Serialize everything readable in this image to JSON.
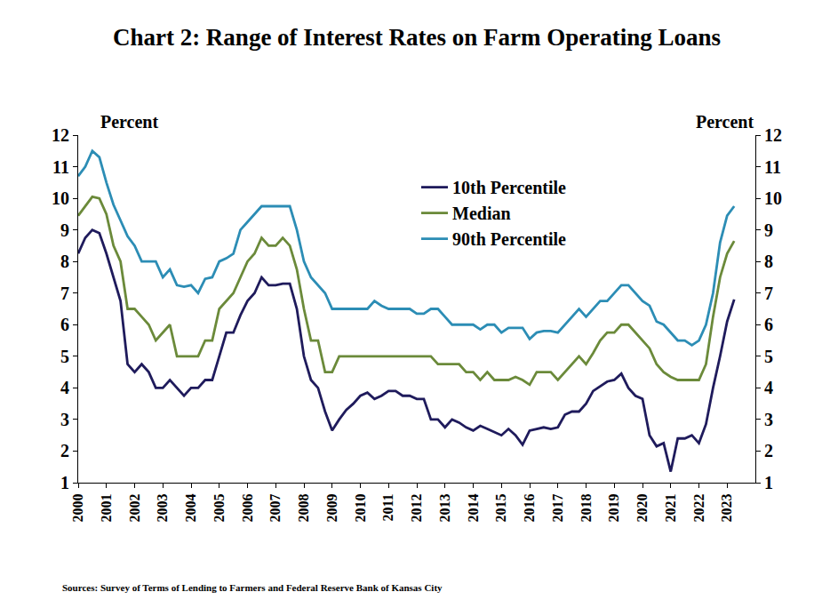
{
  "chart_data": {
    "type": "line",
    "title": "Chart 2: Range of Interest Rates on Farm Operating Loans",
    "ylabel": "Percent",
    "y2label": "Percent",
    "source": "Sources: Survey of Terms of Lending to Farmers and Federal Reserve Bank of Kansas City",
    "x": [
      2000,
      2000.25,
      2000.5,
      2000.75,
      2001,
      2001.25,
      2001.5,
      2001.75,
      2002,
      2002.25,
      2002.5,
      2002.75,
      2003,
      2003.25,
      2003.5,
      2003.75,
      2004,
      2004.25,
      2004.5,
      2004.75,
      2005,
      2005.25,
      2005.5,
      2005.75,
      2006,
      2006.25,
      2006.5,
      2006.75,
      2007,
      2007.25,
      2007.5,
      2007.75,
      2008,
      2008.25,
      2008.5,
      2008.75,
      2009,
      2009.25,
      2009.5,
      2009.75,
      2010,
      2010.25,
      2010.5,
      2010.75,
      2011,
      2011.25,
      2011.5,
      2011.75,
      2012,
      2012.25,
      2012.5,
      2012.75,
      2013,
      2013.25,
      2013.5,
      2013.75,
      2014,
      2014.25,
      2014.5,
      2014.75,
      2015,
      2015.25,
      2015.5,
      2015.75,
      2016,
      2016.25,
      2016.5,
      2016.75,
      2017,
      2017.25,
      2017.5,
      2017.75,
      2018,
      2018.25,
      2018.5,
      2018.75,
      2019,
      2019.25,
      2019.5,
      2019.75,
      2020,
      2020.25,
      2020.5,
      2020.75,
      2021,
      2021.25,
      2021.5,
      2021.75,
      2022,
      2022.25,
      2022.5,
      2022.75,
      2023,
      2023.25
    ],
    "series": [
      {
        "name": "10th Percentile",
        "color": "#1f1b5c",
        "values": [
          8.25,
          8.75,
          9.0,
          8.9,
          8.25,
          7.5,
          6.75,
          4.75,
          4.5,
          4.75,
          4.5,
          4.0,
          4.0,
          4.25,
          4.0,
          3.75,
          4.0,
          4.0,
          4.25,
          4.25,
          5.0,
          5.75,
          5.75,
          6.3,
          6.75,
          7.0,
          7.5,
          7.25,
          7.25,
          7.3,
          7.3,
          6.5,
          5.0,
          4.25,
          4.0,
          3.25,
          2.65,
          3.0,
          3.3,
          3.5,
          3.75,
          3.85,
          3.65,
          3.75,
          3.9,
          3.9,
          3.75,
          3.75,
          3.65,
          3.65,
          3.0,
          3.0,
          2.75,
          3.0,
          2.9,
          2.75,
          2.65,
          2.8,
          2.7,
          2.6,
          2.5,
          2.7,
          2.5,
          2.2,
          2.65,
          2.7,
          2.75,
          2.7,
          2.75,
          3.15,
          3.25,
          3.25,
          3.5,
          3.9,
          4.05,
          4.2,
          4.25,
          4.45,
          4.0,
          3.75,
          3.65,
          2.5,
          2.15,
          2.25,
          1.35,
          2.4,
          2.4,
          2.5,
          2.25,
          2.85,
          4.0,
          5.0,
          6.1,
          6.8
        ]
      },
      {
        "name": "Median",
        "color": "#6b8a3a",
        "values": [
          9.45,
          9.75,
          10.05,
          10.0,
          9.5,
          8.5,
          8.0,
          6.5,
          6.5,
          6.25,
          6.0,
          5.5,
          5.75,
          6.0,
          5.0,
          5.0,
          5.0,
          5.0,
          5.5,
          5.5,
          6.5,
          6.75,
          7.0,
          7.5,
          8.0,
          8.25,
          8.75,
          8.5,
          8.5,
          8.75,
          8.5,
          7.75,
          6.5,
          5.5,
          5.5,
          4.5,
          4.5,
          5.0,
          5.0,
          5.0,
          5.0,
          5.0,
          5.0,
          5.0,
          5.0,
          5.0,
          5.0,
          5.0,
          5.0,
          5.0,
          5.0,
          4.75,
          4.75,
          4.75,
          4.75,
          4.5,
          4.5,
          4.25,
          4.5,
          4.25,
          4.25,
          4.25,
          4.35,
          4.25,
          4.1,
          4.5,
          4.5,
          4.5,
          4.25,
          4.5,
          4.75,
          5.0,
          4.75,
          5.1,
          5.5,
          5.75,
          5.75,
          6.0,
          6.0,
          5.75,
          5.5,
          5.25,
          4.75,
          4.5,
          4.35,
          4.25,
          4.25,
          4.25,
          4.25,
          4.75,
          6.25,
          7.5,
          8.25,
          8.65
        ]
      },
      {
        "name": "90th Percentile",
        "color": "#2c8db5",
        "values": [
          10.7,
          11.0,
          11.5,
          11.3,
          10.5,
          9.8,
          9.3,
          8.8,
          8.5,
          8.0,
          8.0,
          8.0,
          7.5,
          7.75,
          7.25,
          7.2,
          7.25,
          7.0,
          7.45,
          7.5,
          8.0,
          8.1,
          8.25,
          9.0,
          9.25,
          9.5,
          9.75,
          9.75,
          9.75,
          9.75,
          9.75,
          9.0,
          8.0,
          7.5,
          7.25,
          7.0,
          6.5,
          6.5,
          6.5,
          6.5,
          6.5,
          6.5,
          6.75,
          6.6,
          6.5,
          6.5,
          6.5,
          6.5,
          6.35,
          6.35,
          6.5,
          6.5,
          6.25,
          6.0,
          6.0,
          6.0,
          6.0,
          5.85,
          6.0,
          6.0,
          5.75,
          5.9,
          5.9,
          5.9,
          5.55,
          5.75,
          5.8,
          5.8,
          5.75,
          6.0,
          6.25,
          6.5,
          6.25,
          6.5,
          6.75,
          6.75,
          7.0,
          7.25,
          7.25,
          7.0,
          6.75,
          6.6,
          6.1,
          6.0,
          5.75,
          5.5,
          5.5,
          5.35,
          5.5,
          6.0,
          7.0,
          8.6,
          9.45,
          9.75
        ]
      }
    ],
    "xlim": [
      2000,
      2024
    ],
    "xticks": [
      2000,
      2001,
      2002,
      2003,
      2004,
      2005,
      2006,
      2007,
      2008,
      2009,
      2010,
      2011,
      2012,
      2013,
      2014,
      2015,
      2016,
      2017,
      2018,
      2019,
      2020,
      2021,
      2022,
      2023
    ],
    "ylim": [
      1,
      12
    ],
    "yticks": [
      1,
      2,
      3,
      4,
      5,
      6,
      7,
      8,
      9,
      10,
      11,
      12
    ],
    "y2lim": [
      1,
      12
    ],
    "y2ticks": [
      1,
      2,
      3,
      4,
      5,
      6,
      7,
      8,
      9,
      10,
      11,
      12
    ],
    "grid": false,
    "legend": "top"
  }
}
